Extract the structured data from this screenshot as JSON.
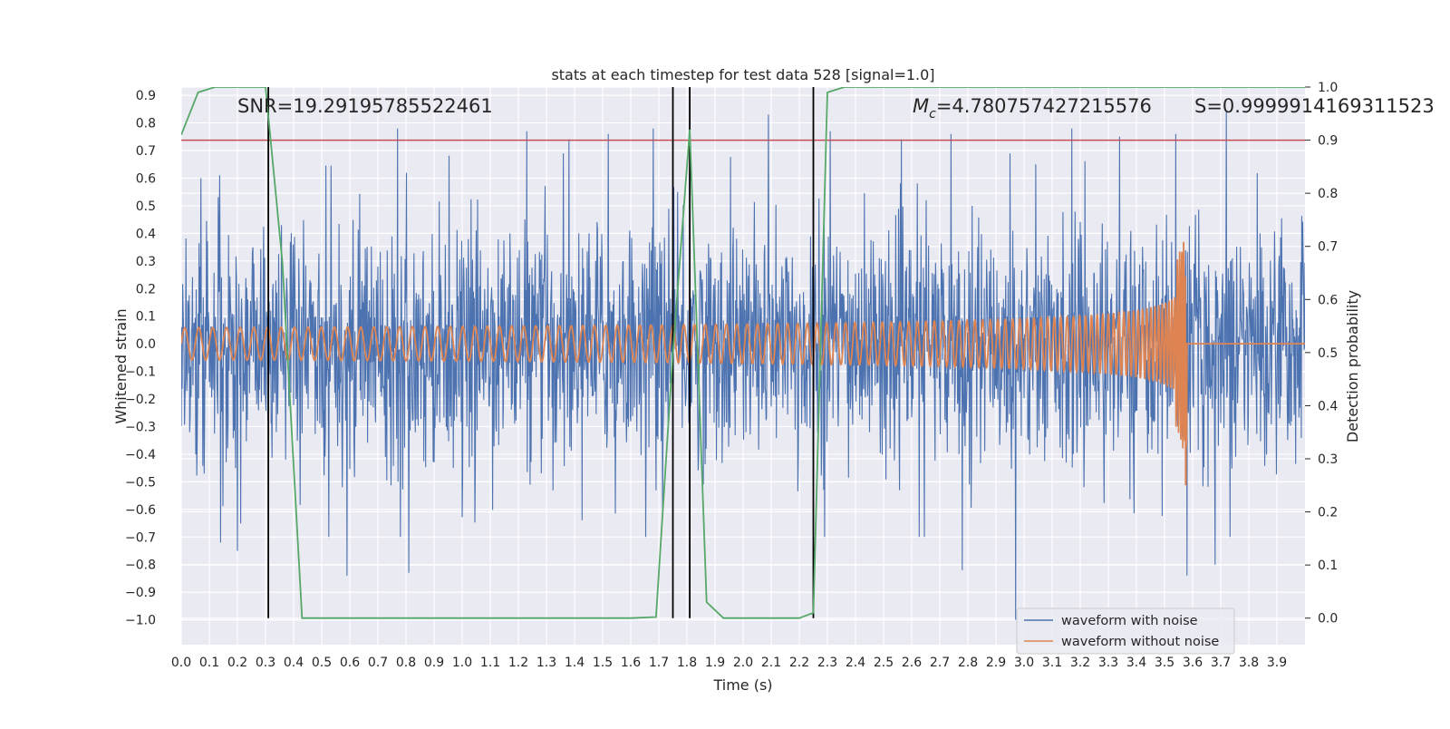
{
  "chart_data": {
    "type": "line",
    "title": "stats at each timestep for test data 528 [signal=1.0]",
    "xlabel": "Time (s)",
    "ylabel": "Whitened strain",
    "y2label": "Detection probability",
    "xlim": [
      0.0,
      4.0
    ],
    "ylim": [
      -1.09,
      0.93
    ],
    "y2lim": [
      -0.05,
      1.0
    ],
    "x_ticks": [
      0.0,
      0.1,
      0.2,
      0.3,
      0.4,
      0.5,
      0.6,
      0.7,
      0.8,
      0.9,
      1.0,
      1.1,
      1.2,
      1.3,
      1.4,
      1.5,
      1.6,
      1.7,
      1.8,
      1.9,
      2.0,
      2.1,
      2.2,
      2.3,
      2.4,
      2.5,
      2.6,
      2.7,
      2.8,
      2.9,
      3.0,
      3.1,
      3.2,
      3.3,
      3.4,
      3.5,
      3.6,
      3.7,
      3.8,
      3.9
    ],
    "x_tick_labels": [
      "0.0",
      "0.1",
      "0.2",
      "0.3",
      "0.4",
      "0.5",
      "0.6",
      "0.7",
      "0.8",
      "0.9",
      "1.0",
      "1.1",
      "1.2",
      "1.3",
      "1.4",
      "1.5",
      "1.6",
      "1.7",
      "1.8",
      "1.9",
      "2.0",
      "2.1",
      "2.2",
      "2.3",
      "2.4",
      "2.5",
      "2.6",
      "2.7",
      "2.8",
      "2.9",
      "3.0",
      "3.1",
      "3.2",
      "3.3",
      "3.4",
      "3.5",
      "3.6",
      "3.7",
      "3.8",
      "3.9"
    ],
    "y_ticks": [
      0.9,
      0.8,
      0.7,
      0.6,
      0.5,
      0.4,
      0.3,
      0.2,
      0.1,
      0.0,
      -0.1,
      -0.2,
      -0.3,
      -0.4,
      -0.5,
      -0.6,
      -0.7,
      -0.8,
      -0.9,
      -1.0
    ],
    "y_tick_labels": [
      "0.9",
      "0.8",
      "0.7",
      "0.6",
      "0.5",
      "0.4",
      "0.3",
      "0.2",
      "0.1",
      "0.0",
      "−0.1",
      "−0.2",
      "−0.3",
      "−0.4",
      "−0.5",
      "−0.6",
      "−0.7",
      "−0.8",
      "−0.9",
      "−1.0"
    ],
    "y2_ticks": [
      1.0,
      0.9,
      0.8,
      0.7,
      0.6,
      0.5,
      0.4,
      0.3,
      0.2,
      0.1,
      0.0
    ],
    "y2_tick_labels": [
      "1.0",
      "0.9",
      "0.8",
      "0.7",
      "0.6",
      "0.5",
      "0.4",
      "0.3",
      "0.2",
      "0.1",
      "0.0"
    ],
    "grid": true,
    "legend_position": "lower-right",
    "annotations": {
      "snr": "SNR=19.29195785522461",
      "mc_symbol": "M",
      "mc_subscript": "c",
      "mc_value": "=4.780757427215576",
      "s": "S=0.9999914169311523"
    },
    "threshold": {
      "y2": 0.9,
      "color": "#c44e52"
    },
    "vlines_x": [
      0.31,
      1.75,
      1.81,
      2.25
    ],
    "series": [
      {
        "name": "waveform with noise",
        "color": "#4c72b0",
        "description_values": {
          "amplitude_typical": 0.45,
          "peaks": [
            [
              0.07,
              0.6
            ],
            [
              0.14,
              -0.72
            ],
            [
              0.2,
              -0.75
            ],
            [
              0.59,
              -0.84
            ],
            [
              0.77,
              0.78
            ],
            [
              0.81,
              -0.83
            ],
            [
              1.23,
              0.77
            ],
            [
              1.36,
              0.69
            ],
            [
              1.52,
              0.76
            ],
            [
              1.68,
              0.78
            ],
            [
              2.09,
              0.83
            ],
            [
              2.31,
              0.77
            ],
            [
              2.74,
              0.76
            ],
            [
              2.78,
              -0.82
            ],
            [
              2.95,
              0.69
            ],
            [
              2.97,
              -1.0
            ],
            [
              3.17,
              0.78
            ],
            [
              3.34,
              0.75
            ],
            [
              3.54,
              0.76
            ],
            [
              3.58,
              -0.84
            ],
            [
              3.72,
              0.84
            ],
            [
              3.68,
              -0.8
            ]
          ]
        }
      },
      {
        "name": "waveform without noise",
        "color": "#dd8452",
        "chirp": {
          "start_x": 0.0,
          "end_x": 3.58,
          "start_amp": 0.058,
          "peak_amp": 0.38,
          "peak_neg": -0.51,
          "start_freq_hz": 20,
          "end_freq_hz": 110
        }
      },
      {
        "name": "detection probability",
        "axis": "y2",
        "color": "#55a868",
        "x": [
          0.0,
          0.06,
          0.12,
          0.18,
          0.24,
          0.3,
          0.36,
          0.43,
          0.5,
          0.6,
          0.8,
          1.0,
          1.2,
          1.4,
          1.6,
          1.69,
          1.75,
          1.81,
          1.87,
          1.93,
          2.0,
          2.1,
          2.2,
          2.25,
          2.3,
          2.36,
          2.5,
          3.0,
          3.5,
          4.0
        ],
        "y": [
          0.91,
          0.99,
          1.0,
          1.0,
          1.0,
          1.0,
          0.67,
          0.0,
          0.0,
          0.0,
          0.0,
          0.0,
          0.0,
          0.0,
          0.0,
          0.002,
          0.5,
          0.92,
          0.03,
          0.0,
          0.0,
          0.0,
          0.0,
          0.01,
          0.99,
          1.0,
          1.0,
          1.0,
          1.0,
          1.0
        ]
      }
    ]
  }
}
